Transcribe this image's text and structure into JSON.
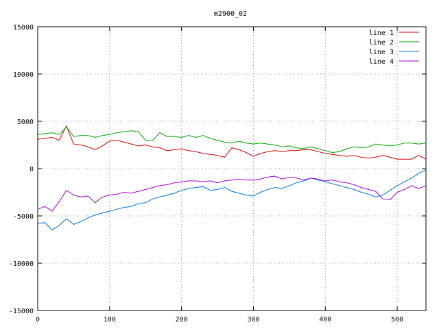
{
  "chart_data": {
    "type": "line",
    "title": "m2900_02",
    "xlabel": "",
    "ylabel": "",
    "xlim": [
      0,
      540
    ],
    "ylim": [
      -15000,
      15000
    ],
    "xticks": [
      0,
      100,
      200,
      300,
      400,
      500
    ],
    "yticks": [
      -15000,
      -10000,
      -5000,
      0,
      5000,
      10000,
      15000
    ],
    "xtick_labels": [
      "0",
      "100",
      "200",
      "300",
      "400",
      "500"
    ],
    "ytick_labels": [
      "-15000",
      "-10000",
      "-5000",
      "0",
      "5000",
      "10000",
      "15000"
    ],
    "grid": true,
    "legend_position": "top-right",
    "series": [
      {
        "name": "line 1",
        "color": "#cc0000",
        "x": [
          0,
          10,
          20,
          30,
          40,
          50,
          60,
          70,
          80,
          90,
          100,
          110,
          120,
          130,
          140,
          150,
          160,
          170,
          180,
          190,
          200,
          210,
          220,
          230,
          240,
          250,
          260,
          270,
          280,
          290,
          300,
          310,
          320,
          330,
          340,
          350,
          360,
          370,
          380,
          390,
          400,
          410,
          420,
          430,
          440,
          450,
          460,
          470,
          480,
          490,
          500,
          510,
          520,
          530,
          540
        ],
        "values": [
          3100,
          3200,
          3300,
          3000,
          4500,
          2600,
          2500,
          2300,
          2000,
          2400,
          2900,
          3000,
          2800,
          2600,
          2400,
          2500,
          2300,
          2200,
          1900,
          2000,
          2100,
          1900,
          1800,
          1600,
          1500,
          1400,
          1200,
          2200,
          2000,
          1700,
          1300,
          1600,
          1800,
          1900,
          1800,
          1900,
          1900,
          2000,
          2000,
          1800,
          1600,
          1500,
          1400,
          1300,
          1400,
          1200,
          1100,
          1200,
          1400,
          1200,
          1000,
          1000,
          1000,
          1400,
          1000
        ]
      },
      {
        "name": "line 2",
        "color": "#00a000",
        "x": [
          0,
          10,
          20,
          30,
          40,
          50,
          60,
          70,
          80,
          90,
          100,
          110,
          120,
          130,
          140,
          150,
          160,
          170,
          180,
          190,
          200,
          210,
          220,
          230,
          240,
          250,
          260,
          270,
          280,
          290,
          300,
          310,
          320,
          330,
          340,
          350,
          360,
          370,
          380,
          390,
          400,
          410,
          420,
          430,
          440,
          450,
          460,
          470,
          480,
          490,
          500,
          510,
          520,
          530,
          540
        ],
        "values": [
          3600,
          3700,
          3800,
          3600,
          4400,
          3400,
          3500,
          3500,
          3300,
          3500,
          3600,
          3800,
          3900,
          4000,
          3900,
          3000,
          3000,
          3800,
          3400,
          3400,
          3300,
          3500,
          3300,
          3500,
          3200,
          3000,
          2800,
          2700,
          2900,
          2700,
          2600,
          2700,
          2600,
          2500,
          2300,
          2400,
          2200,
          2100,
          2300,
          2100,
          1900,
          1700,
          1800,
          2100,
          2300,
          2200,
          2300,
          2600,
          2500,
          2400,
          2500,
          2700,
          2700,
          2600,
          2700
        ]
      },
      {
        "name": "line 3",
        "color": "#0070d0",
        "x": [
          0,
          10,
          20,
          30,
          40,
          50,
          60,
          70,
          80,
          90,
          100,
          110,
          120,
          130,
          140,
          150,
          160,
          170,
          180,
          190,
          200,
          210,
          220,
          230,
          240,
          250,
          260,
          270,
          280,
          290,
          300,
          310,
          320,
          330,
          340,
          350,
          360,
          370,
          380,
          390,
          400,
          410,
          420,
          430,
          440,
          450,
          460,
          470,
          480,
          490,
          500,
          510,
          520,
          530,
          540
        ],
        "values": [
          -5800,
          -5700,
          -6500,
          -6000,
          -5300,
          -5900,
          -5600,
          -5200,
          -4900,
          -4700,
          -4500,
          -4300,
          -4100,
          -4000,
          -3700,
          -3600,
          -3200,
          -3000,
          -2800,
          -2600,
          -2300,
          -2100,
          -2000,
          -1900,
          -2300,
          -2200,
          -2000,
          -2400,
          -2600,
          -2800,
          -2900,
          -2500,
          -2200,
          -2000,
          -2100,
          -1800,
          -1500,
          -1300,
          -1000,
          -1200,
          -1400,
          -1600,
          -1800,
          -2000,
          -2200,
          -2500,
          -2700,
          -3000,
          -2800,
          -2300,
          -1800,
          -1400,
          -1000,
          -500,
          -100
        ]
      },
      {
        "name": "line 4",
        "color": "#9900cc",
        "x": [
          0,
          10,
          20,
          30,
          40,
          50,
          60,
          70,
          80,
          90,
          100,
          110,
          120,
          130,
          140,
          150,
          160,
          170,
          180,
          190,
          200,
          210,
          220,
          230,
          240,
          250,
          260,
          270,
          280,
          290,
          300,
          310,
          320,
          330,
          340,
          350,
          360,
          370,
          380,
          390,
          400,
          410,
          420,
          430,
          440,
          450,
          460,
          470,
          480,
          490,
          500,
          510,
          520,
          530,
          540
        ],
        "values": [
          -4300,
          -4000,
          -4500,
          -3500,
          -2300,
          -2800,
          -3000,
          -2900,
          -3600,
          -3000,
          -2800,
          -2700,
          -2500,
          -2600,
          -2400,
          -2200,
          -2000,
          -1800,
          -1700,
          -1500,
          -1400,
          -1300,
          -1300,
          -1400,
          -1300,
          -1500,
          -1300,
          -1200,
          -1100,
          -1200,
          -1200,
          -1100,
          -900,
          -800,
          -1100,
          -900,
          -1000,
          -1200,
          -1000,
          -1100,
          -1300,
          -1200,
          -1400,
          -1500,
          -1700,
          -2000,
          -2200,
          -2400,
          -3200,
          -3300,
          -2500,
          -2200,
          -1800,
          -2100,
          -1800
        ]
      }
    ]
  }
}
